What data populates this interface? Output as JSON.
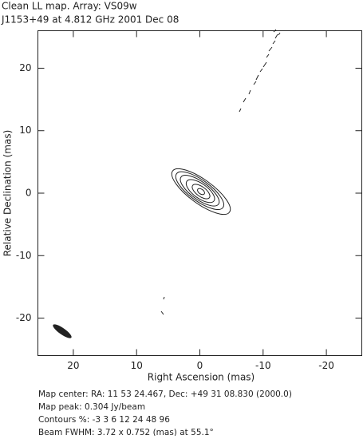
{
  "chart_data": {
    "type": "contour",
    "title": "Clean LL map.  Array:  VS09w",
    "subtitle": "J1153+49 at 4.812 GHz 2001 Dec 08",
    "xlabel": "Right Ascension   (mas)",
    "ylabel": "Relative Declination   (mas)",
    "xlim": [
      25.6,
      -25.6
    ],
    "ylim": [
      -26,
      26
    ],
    "xticks": [
      20,
      10,
      0,
      -10,
      -20
    ],
    "yticks": [
      -20,
      -10,
      0,
      10,
      20
    ],
    "notes": [
      "Map center:  RA: 11 53 24.467,  Dec: +49 31 08.830 (2000.0)",
      "Map peak: 0.304 Jy/beam",
      "Contours %: -3 3 6 12 24 48 96",
      "Beam FWHM: 3.72 x 0.752 (mas) at 55.1°"
    ]
  }
}
